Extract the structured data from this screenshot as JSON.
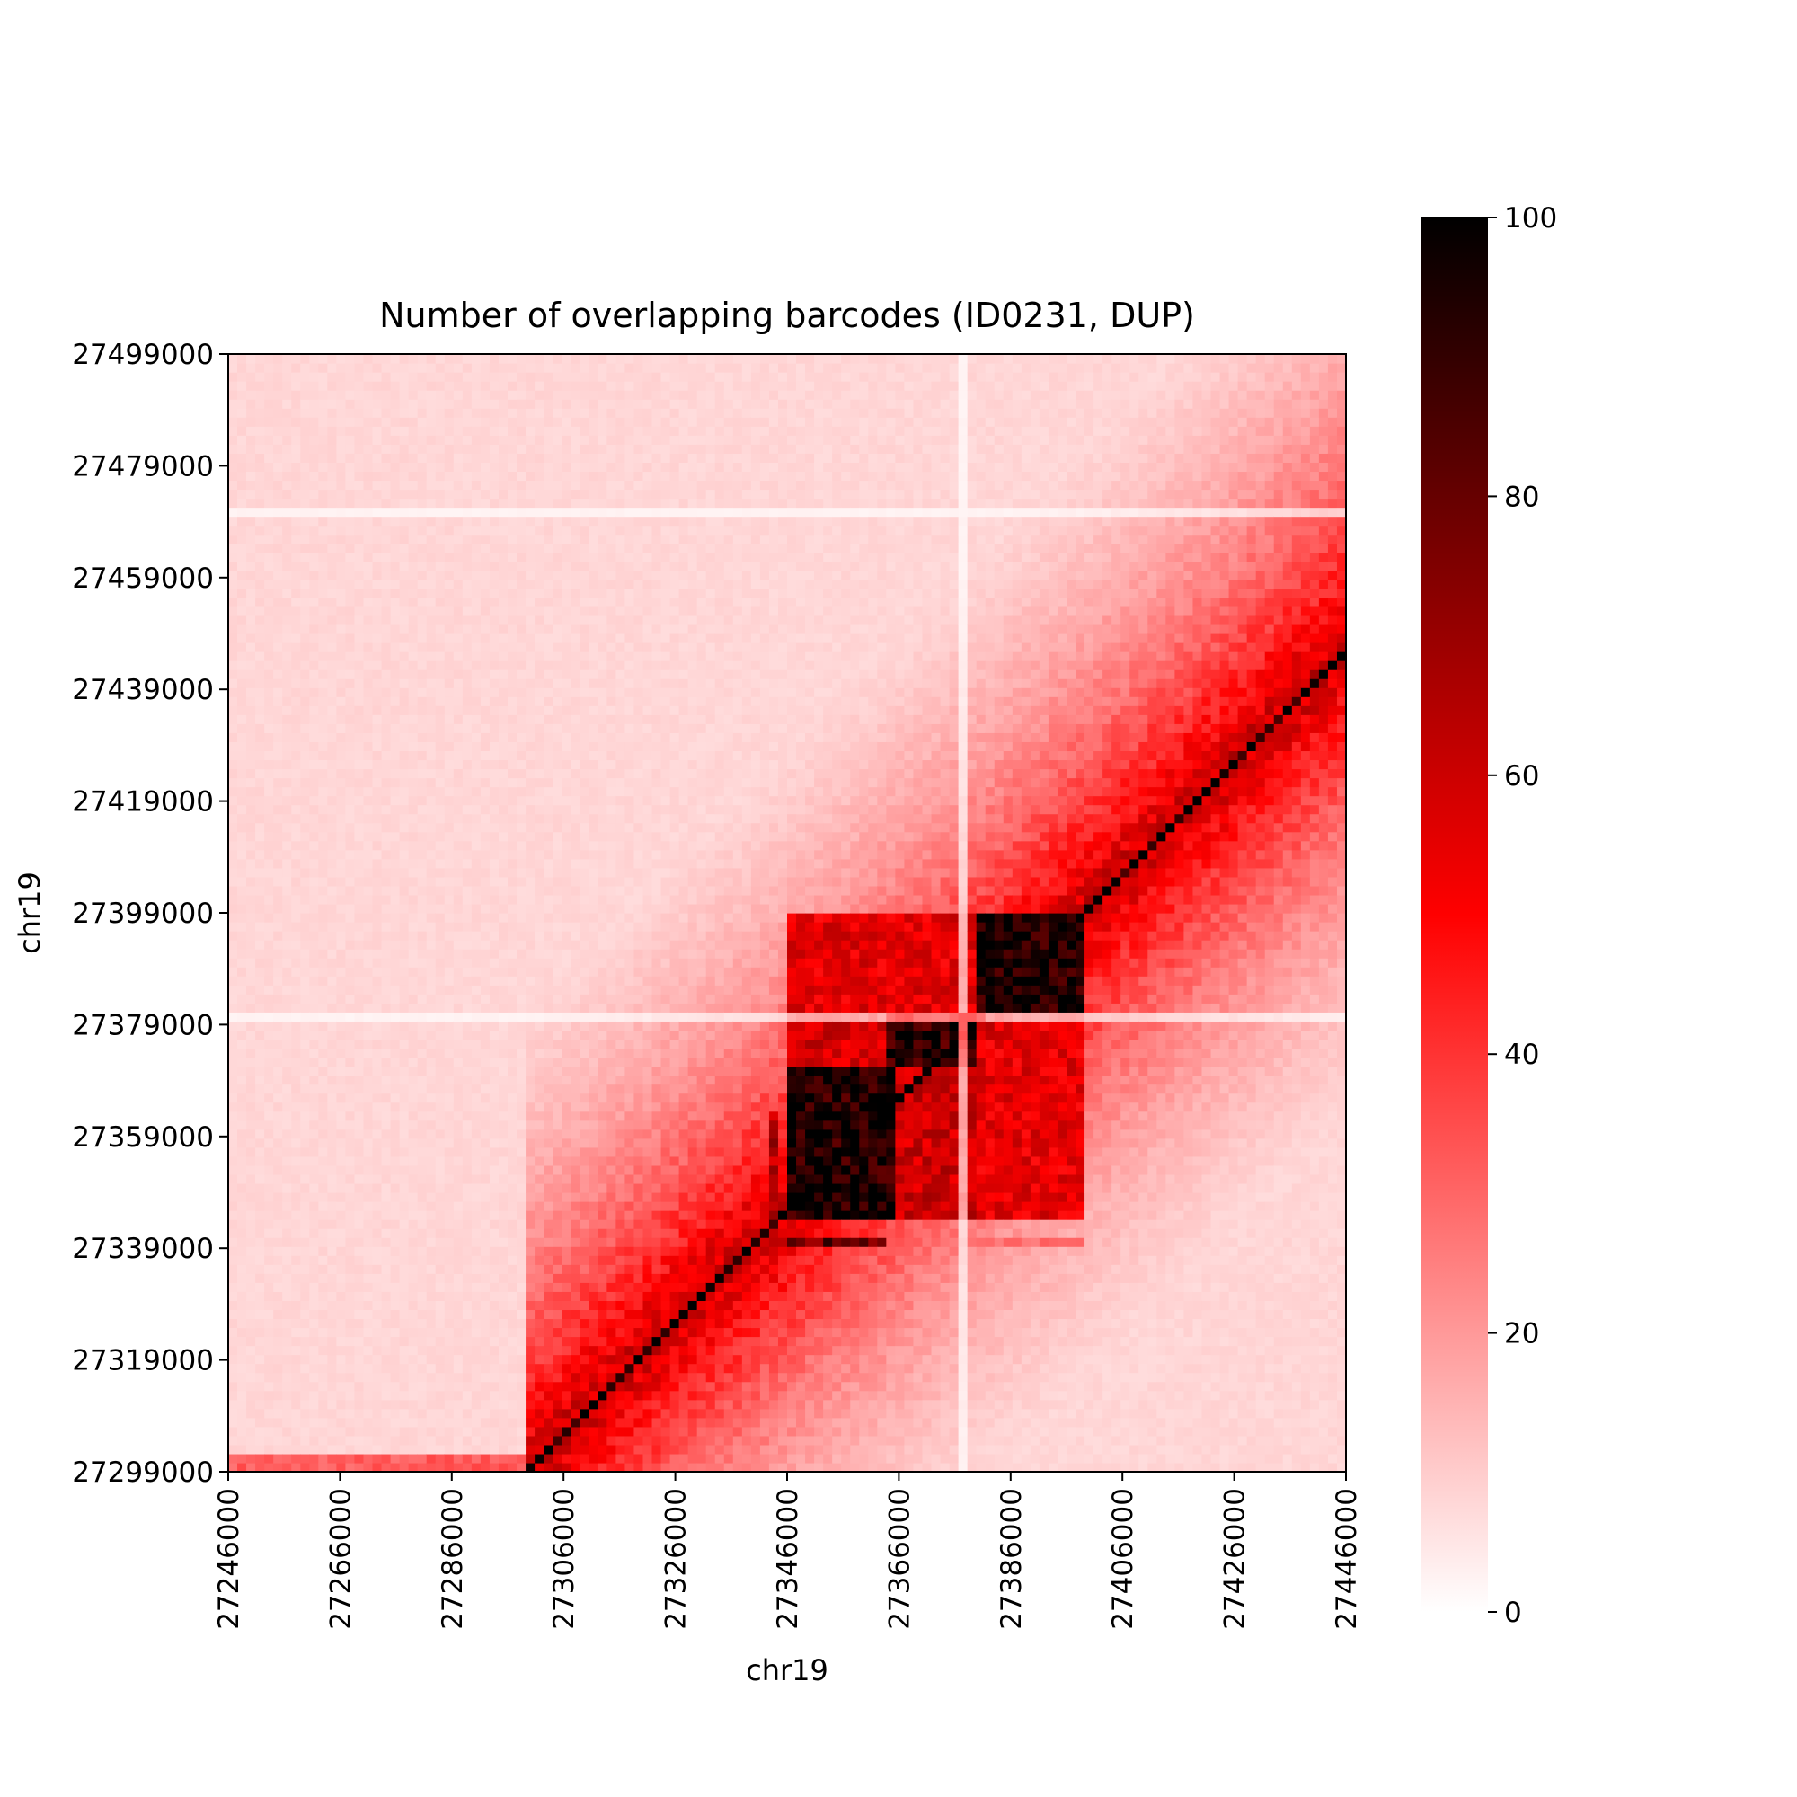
{
  "chart_data": {
    "type": "heatmap",
    "title": "Number of overlapping barcodes (ID0231, DUP)",
    "xlabel": "chr19",
    "ylabel": "chr19",
    "x_range": [
      27246000,
      27446000
    ],
    "y_range": [
      27299000,
      27499000
    ],
    "x_ticks": [
      "27246000",
      "27266000",
      "27286000",
      "27306000",
      "27326000",
      "27346000",
      "27366000",
      "27386000",
      "27406000",
      "27426000",
      "27446000"
    ],
    "y_ticks": [
      "27299000",
      "27319000",
      "27339000",
      "27359000",
      "27379000",
      "27399000",
      "27419000",
      "27439000",
      "27459000",
      "27479000",
      "27499000"
    ],
    "colorbar": {
      "range": [
        0,
        100
      ],
      "ticks": [
        "0",
        "20",
        "40",
        "60",
        "80",
        "100"
      ],
      "colors": [
        {
          "value": 0,
          "color": "#ffffff"
        },
        {
          "value": 50,
          "color": "#ff0000"
        },
        {
          "value": 100,
          "color": "#000000"
        }
      ]
    },
    "diagonal": {
      "x_start": 27299000,
      "x_end": 27446000,
      "value": 100
    },
    "background_level": 8,
    "decay_distance": 40000,
    "features": [
      {
        "x": [
          27346000,
          27366000
        ],
        "y": [
          27344000,
          27372000
        ],
        "value": 95
      },
      {
        "x": [
          27364000,
          27380000
        ],
        "y": [
          27372000,
          27382000
        ],
        "value": 92
      },
      {
        "x": [
          27380000,
          27400000
        ],
        "y": [
          27382000,
          27399000
        ],
        "value": 96
      },
      {
        "x": [
          27346000,
          27380000
        ],
        "y": [
          27382000,
          27399000
        ],
        "value": 55
      },
      {
        "x": [
          27380000,
          27400000
        ],
        "y": [
          27344000,
          27382000
        ],
        "value": 55
      },
      {
        "x": [
          27346000,
          27366000
        ],
        "y": [
          27372000,
          27382000
        ],
        "value": 58
      },
      {
        "x": [
          27366000,
          27380000
        ],
        "y": [
          27344000,
          27372000
        ],
        "value": 60
      },
      {
        "x": [
          27342000,
          27344000
        ],
        "y": [
          27344000,
          27364000
        ],
        "value": 65
      },
      {
        "x": [
          27346000,
          27364000
        ],
        "y": [
          27339000,
          27341000
        ],
        "value": 80
      },
      {
        "x": [
          27364000,
          27400000
        ],
        "y": [
          27339000,
          27341000
        ],
        "value": 28
      },
      {
        "x": [
          27246000,
          27300000
        ],
        "y": [
          27299000,
          27303000
        ],
        "value": 32
      },
      {
        "x": [
          27420000,
          27446000
        ],
        "y": [
          27425000,
          27445000
        ],
        "value": 30
      }
    ],
    "gaps": {
      "x": [
        27378000
      ],
      "y": [
        27380000,
        27471000
      ]
    }
  }
}
